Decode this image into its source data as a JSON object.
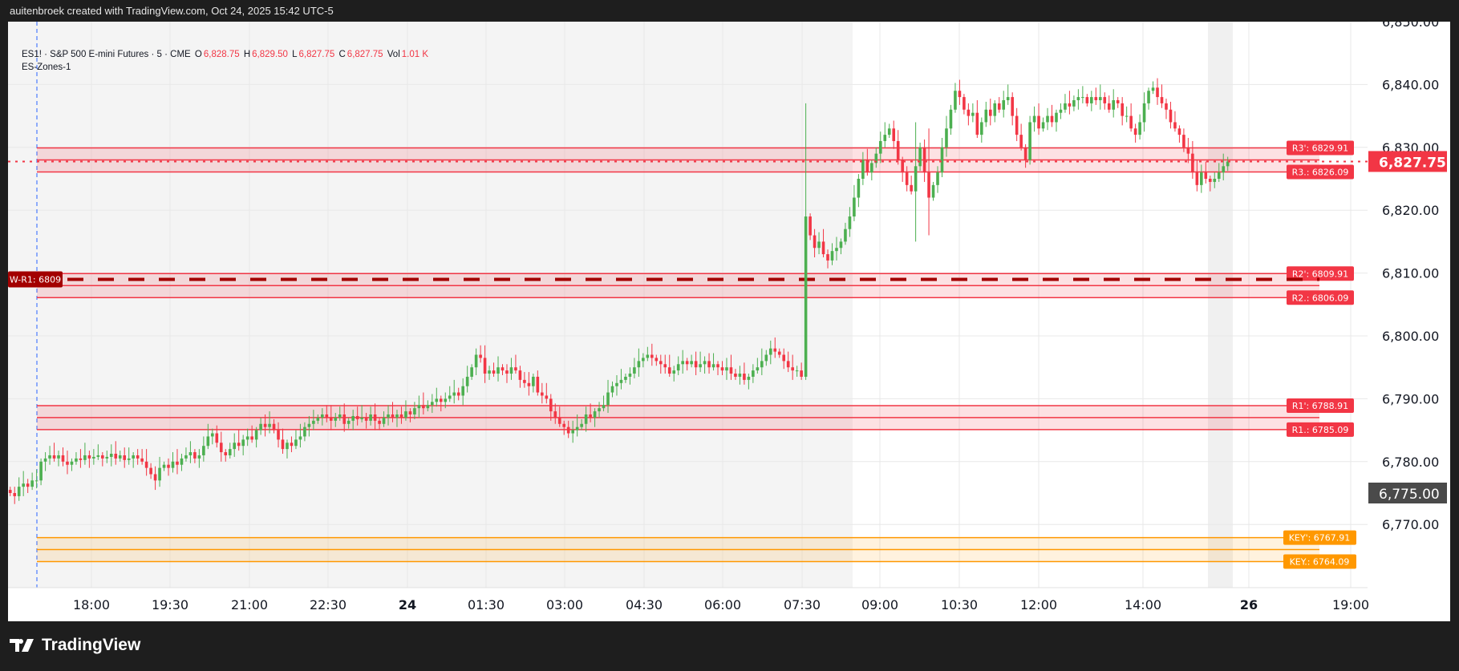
{
  "header": {
    "attribution": "auitenbroek created with TradingView.com, Oct 24, 2025 15:42 UTC-5"
  },
  "legend": {
    "symbol": "ES1! · S&P 500 E-mini Futures · 5 · CME",
    "o_label": "O",
    "o": "6,828.75",
    "h_label": "H",
    "h": "6,829.50",
    "l_label": "L",
    "l": "6,827.75",
    "c_label": "C",
    "c": "6,827.75",
    "vol_label": "Vol",
    "vol": "1.01 K",
    "indicator": "ES-Zones-1"
  },
  "footer": {
    "brand": "TradingView",
    "logo_icon": "tradingview-logo-icon"
  },
  "colors": {
    "up": "#4caf50",
    "down": "#f23645",
    "zone_red": "#f23645",
    "zone_orange": "#ff9800",
    "weekly": "#a30000",
    "session_line": "#2962ff"
  },
  "chart_data": {
    "type": "candlestick",
    "timeframe": "5",
    "y_ticks": [
      "6,850.00",
      "6,840.00",
      "6,830.00",
      "6,820.00",
      "6,810.00",
      "6,800.00",
      "6,790.00",
      "6,780.00",
      "6,770.00"
    ],
    "y_tick_values": [
      6850,
      6840,
      6830,
      6820,
      6810,
      6800,
      6790,
      6780,
      6770
    ],
    "x_ticks": [
      {
        "label": "18:00",
        "bold": false
      },
      {
        "label": "19:30",
        "bold": false
      },
      {
        "label": "21:00",
        "bold": false
      },
      {
        "label": "22:30",
        "bold": false
      },
      {
        "label": "24",
        "bold": true
      },
      {
        "label": "01:30",
        "bold": false
      },
      {
        "label": "03:00",
        "bold": false
      },
      {
        "label": "04:30",
        "bold": false
      },
      {
        "label": "06:00",
        "bold": false
      },
      {
        "label": "07:30",
        "bold": false
      },
      {
        "label": "09:00",
        "bold": false
      },
      {
        "label": "10:30",
        "bold": false
      },
      {
        "label": "12:00",
        "bold": false
      },
      {
        "label": "14:00",
        "bold": false
      },
      {
        "label": "26",
        "bold": true
      },
      {
        "label": "19:00",
        "bold": false
      }
    ],
    "last_price": 6827.75,
    "last_price_label": "6,827.75",
    "crosshair_price": 6775.0,
    "crosshair_label": "6,775.00",
    "first_open": 6775.5,
    "closes": [
      6775,
      6774.5,
      6776,
      6776.5,
      6776,
      6777,
      6777,
      6780,
      6780.5,
      6781,
      6780.5,
      6781,
      6780,
      6779.5,
      6780,
      6780.5,
      6780.25,
      6781,
      6780.5,
      6780.75,
      6781,
      6780.5,
      6780.75,
      6781.25,
      6780.5,
      6781,
      6780.25,
      6780.5,
      6781,
      6780.5,
      6780,
      6779,
      6778,
      6777,
      6779,
      6779.5,
      6779,
      6780,
      6779.5,
      6780.5,
      6781,
      6781.5,
      6780.5,
      6781,
      6782.5,
      6784,
      6784.5,
      6783,
      6781.5,
      6781,
      6782,
      6783,
      6782.5,
      6783.5,
      6784,
      6783.5,
      6785,
      6786,
      6785.5,
      6786,
      6785,
      6783.5,
      6782,
      6783,
      6782.5,
      6783.5,
      6784,
      6785.5,
      6786,
      6786.5,
      6787,
      6787.5,
      6787,
      6786.5,
      6787,
      6787.5,
      6786,
      6786.5,
      6787.25,
      6786.75,
      6787,
      6786.5,
      6787.5,
      6786.5,
      6786,
      6787,
      6787.5,
      6787,
      6787.5,
      6787,
      6788,
      6787.5,
      6788.5,
      6789,
      6788.5,
      6789,
      6789.5,
      6790,
      6789.5,
      6790,
      6790.5,
      6791,
      6790.5,
      6792,
      6793.5,
      6795,
      6797,
      6796.5,
      6794,
      6794.5,
      6794,
      6795,
      6794.5,
      6794,
      6795,
      6794.5,
      6793,
      6792.5,
      6792,
      6793.5,
      6791,
      6790.5,
      6790,
      6788,
      6787,
      6786,
      6785.5,
      6784.5,
      6785,
      6785.5,
      6786,
      6787.5,
      6787,
      6788,
      6788.5,
      6789,
      6791,
      6792,
      6792.5,
      6793,
      6793.5,
      6794,
      6795,
      6796,
      6796.5,
      6797,
      6796.5,
      6796,
      6795.5,
      6795,
      6794,
      6794.5,
      6795.5,
      6796,
      6795.5,
      6796,
      6795,
      6795.5,
      6796,
      6795,
      6795.5,
      6795,
      6794.5,
      6795,
      6794,
      6793.5,
      6794,
      6793,
      6793.5,
      6794.5,
      6795,
      6796,
      6797,
      6798,
      6797.5,
      6797,
      6796,
      6795,
      6794.5,
      6794.5,
      6793.5,
      6819,
      6816,
      6814,
      6815,
      6813,
      6812,
      6813.5,
      6814,
      6815,
      6817,
      6819,
      6822,
      6825,
      6828,
      6826,
      6827.5,
      6829,
      6831,
      6832,
      6833,
      6831,
      6828,
      6826,
      6824,
      6823,
      6827,
      6830,
      6826,
      6822,
      6824,
      6826,
      6830,
      6833,
      6836,
      6839,
      6838,
      6836,
      6835,
      6835.5,
      6832,
      6834,
      6836,
      6835,
      6837,
      6836,
      6837.5,
      6838,
      6835,
      6832,
      6830,
      6828,
      6834,
      6835,
      6833,
      6834,
      6835,
      6834,
      6835.5,
      6836,
      6837,
      6836.5,
      6837.5,
      6838,
      6838,
      6837,
      6838,
      6837.5,
      6838,
      6837,
      6836,
      6837.5,
      6837,
      6835,
      6835,
      6833,
      6832,
      6834,
      6837,
      6839,
      6839.5,
      6838,
      6837,
      6836,
      6834,
      6833,
      6832,
      6830,
      6829,
      6826,
      6824,
      6826,
      6825,
      6824.5,
      6825,
      6826,
      6827,
      6827.75
    ],
    "wick_overrides": {
      "181": [
        6837,
        6793
      ],
      "206": [
        6834,
        6815
      ],
      "209": [
        6833,
        6816
      ],
      "270": [
        6828,
        6823
      ]
    },
    "zones": [
      {
        "name": "R3",
        "upper": 6829.91,
        "lower": 6826.09,
        "upper_label": "R3': 6829.91",
        "lower_label": "R3.: 6826.09",
        "color": "#f23645"
      },
      {
        "name": "R2",
        "upper": 6809.91,
        "lower": 6806.09,
        "upper_label": "R2': 6809.91",
        "lower_label": "R2.: 6806.09",
        "color": "#f23645"
      },
      {
        "name": "R1",
        "upper": 6788.91,
        "lower": 6785.09,
        "upper_label": "R1': 6788.91",
        "lower_label": "R1.: 6785.09",
        "color": "#f23645"
      },
      {
        "name": "KEY",
        "upper": 6767.91,
        "lower": 6764.09,
        "upper_label": "KEY': 6767.91",
        "lower_label": "KEY.: 6764.09",
        "color": "#ff9800"
      }
    ],
    "weekly_level": {
      "value": 6809,
      "label": "W-R1: 6809"
    }
  }
}
